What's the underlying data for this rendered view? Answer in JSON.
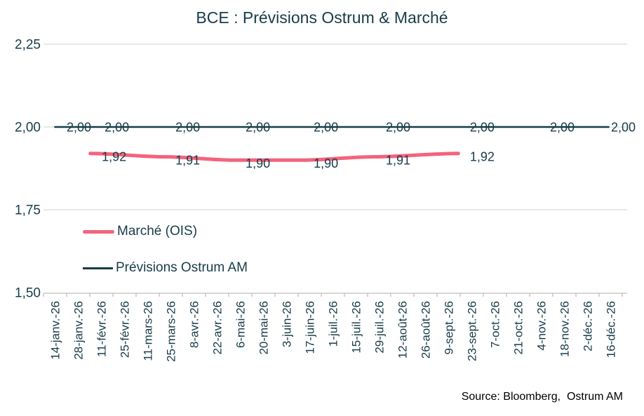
{
  "title": "BCE : Prévisions Ostrum & Marché",
  "source": "Source: Bloomberg,  Ostrum AM",
  "colors": {
    "market": "#f4637d",
    "ostrum": "#173c49",
    "text_dark": "#173c49",
    "grid": "#d9d9d9",
    "axis": "#c0c0c0",
    "source_text": "#000000"
  },
  "chart_data": {
    "type": "line",
    "title": "BCE : Prévisions Ostrum & Marché",
    "xlabel": "",
    "ylabel": "",
    "ylim": [
      1.5,
      2.25
    ],
    "grid": "horizontal",
    "legend_position": "below-left",
    "y_ticks": [
      {
        "value": 2.25,
        "label": "2,25"
      },
      {
        "value": 2.0,
        "label": "2,00"
      },
      {
        "value": 1.75,
        "label": "1,75"
      },
      {
        "value": 1.5,
        "label": "1,50"
      }
    ],
    "x_tick_labels": [
      "14-janv.-26",
      "28-janv.-26",
      "11-févr.-26",
      "25-févr.-26",
      "11-mars-26",
      "25-mars-26",
      "8-avr.-26",
      "22-avr.-26",
      "6-mai-26",
      "20-mai-26",
      "3-juin-26",
      "17-juin-26",
      "1-juil.-26",
      "15-juil.-26",
      "29-juil.-26",
      "12-août-26",
      "26-août-26",
      "9-sept.-26",
      "23-sept.-26",
      "7-oct.-26",
      "21-oct.-26",
      "4-nov.-26",
      "18-nov.-26",
      "2-déc.-26",
      "16-déc.-26"
    ],
    "series": [
      {
        "name": "Marché (OIS)",
        "key": "market",
        "smooth": true,
        "points": [
          {
            "t": 1.52,
            "value": 1.92,
            "label": "1,92"
          },
          {
            "t": 4.7,
            "value": 1.91,
            "label": "1,91"
          },
          {
            "t": 7.73,
            "value": 1.9,
            "label": "1,90"
          },
          {
            "t": 10.67,
            "value": 1.9,
            "label": "1,90"
          },
          {
            "t": 13.79,
            "value": 1.91,
            "label": "1,91"
          },
          {
            "t": 17.42,
            "value": 1.92,
            "label": "1,92"
          }
        ]
      },
      {
        "name": "Prévisions Ostrum AM",
        "key": "ostrum",
        "smooth": false,
        "points": [
          {
            "t": 0,
            "value": 2.0,
            "label": "2,00"
          },
          {
            "t": 1.64,
            "value": 2.0,
            "label": "2,00"
          },
          {
            "t": 4.7,
            "value": 2.0,
            "label": "2,00"
          },
          {
            "t": 7.73,
            "value": 2.0,
            "label": "2,00"
          },
          {
            "t": 10.67,
            "value": 2.0,
            "label": "2,00"
          },
          {
            "t": 13.79,
            "value": 2.0,
            "label": "2,00"
          },
          {
            "t": 17.42,
            "value": 2.0,
            "label": "2,00"
          },
          {
            "t": 20.88,
            "value": 2.0,
            "label": "2,00"
          },
          {
            "t": 23.91,
            "value": 2.0,
            "label": "2,00",
            "lx": 21
          }
        ]
      }
    ]
  }
}
